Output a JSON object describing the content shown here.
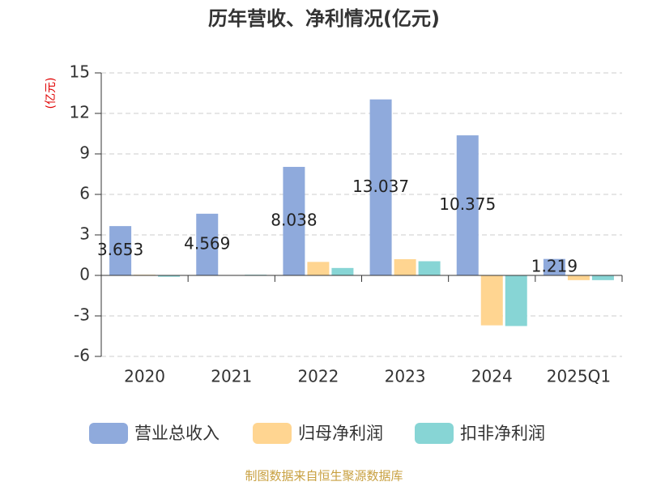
{
  "chart_data": {
    "type": "bar",
    "title": "历年营收、净利情况(亿元)",
    "y_label": "(亿元)",
    "categories": [
      "2020",
      "2021",
      "2022",
      "2023",
      "2024",
      "2025Q1"
    ],
    "series": [
      {
        "name": "营业总收入",
        "color": "#8faadc",
        "values": [
          3.653,
          4.569,
          8.038,
          13.037,
          10.375,
          1.219
        ]
      },
      {
        "name": "归母净利润",
        "color": "#ffd591",
        "values": [
          0.05,
          0.03,
          1.0,
          1.2,
          -3.7,
          -0.35
        ]
      },
      {
        "name": "扣非净利润",
        "color": "#87d5d5",
        "values": [
          -0.1,
          0.05,
          0.55,
          1.05,
          -3.75,
          -0.35
        ]
      }
    ],
    "labeled_series": 0,
    "ylim": [
      -6,
      15
    ],
    "yticks": [
      -6,
      -3,
      0,
      3,
      6,
      9,
      12,
      15
    ],
    "grid": true,
    "source": "制图数据来自恒生聚源数据库"
  }
}
